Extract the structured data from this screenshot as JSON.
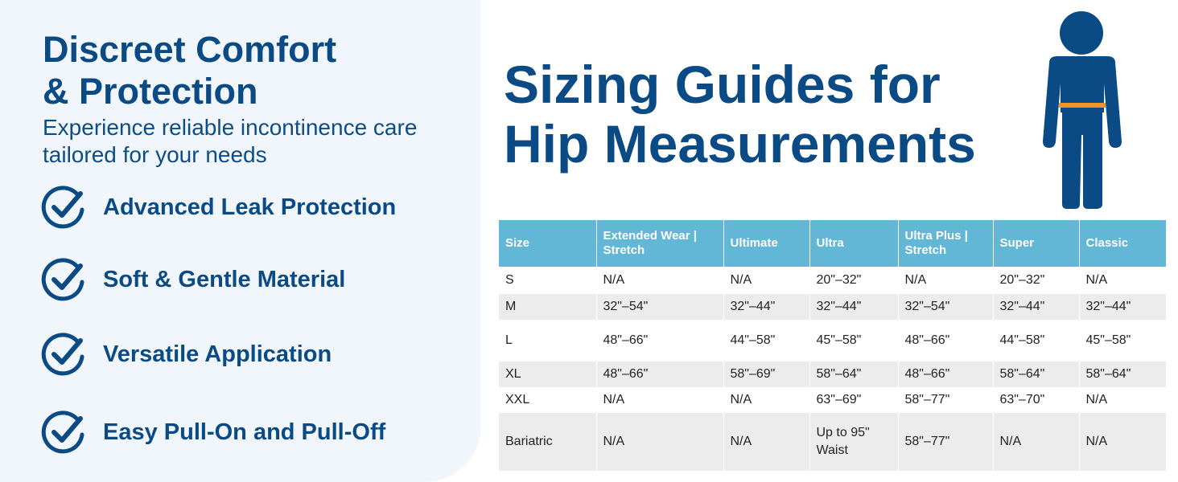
{
  "left_panel": {
    "headline": [
      "Discreet Comfort",
      "& Protection"
    ],
    "subheadline": [
      "Experience reliable incontinence care",
      "tailored for your needs"
    ],
    "features": [
      {
        "icon": "check-circle-icon",
        "label": "Advanced Leak Protection"
      },
      {
        "icon": "check-circle-icon",
        "label": "Soft & Gentle Material"
      },
      {
        "icon": "check-circle-icon",
        "label": "Versatile Application"
      },
      {
        "icon": "check-circle-icon",
        "label": "Easy Pull-On and Pull-Off"
      }
    ]
  },
  "sizing": {
    "title": [
      "Sizing Guides for",
      "Hip Measurements"
    ],
    "figure_icon": "person-hip-measure-icon",
    "table": {
      "headers": [
        "Size",
        "Extended Wear | Stretch",
        "Ultimate",
        "Ultra",
        "Ultra Plus | Stretch",
        "Super",
        "Classic"
      ],
      "rows": [
        [
          "S",
          "N/A",
          "N/A",
          "20\"–32\"",
          "N/A",
          "20\"–32\"",
          "N/A"
        ],
        [
          "M",
          "32\"–54\"",
          "32\"–44\"",
          "32\"–44\"",
          "32\"–54\"",
          "32\"–44\"",
          "32\"–44\""
        ],
        [
          "L",
          "48\"–66\"",
          "44\"–58\"",
          "45\"–58\"",
          "48\"–66\"",
          "44\"–58\"",
          "45\"–58\""
        ],
        [
          "XL",
          "48\"–66\"",
          "58\"–69\"",
          "58\"–64\"",
          "48\"–66\"",
          "58\"–64\"",
          "58\"–64\""
        ],
        [
          "XXL",
          "N/A",
          "N/A",
          "63\"–69\"",
          "58\"–77\"",
          "63\"–70\"",
          "N/A"
        ],
        [
          "Bariatric",
          "N/A",
          "N/A",
          "Up to 95\" Waist",
          "58\"–77\"",
          "N/A",
          "N/A"
        ]
      ]
    }
  },
  "colors": {
    "brand_navy": "#0a4a85",
    "panel_bg": "#f1f5fc",
    "table_header": "#62b6d6",
    "row_alt": "#ececec",
    "hip_band": "#f0942a"
  }
}
